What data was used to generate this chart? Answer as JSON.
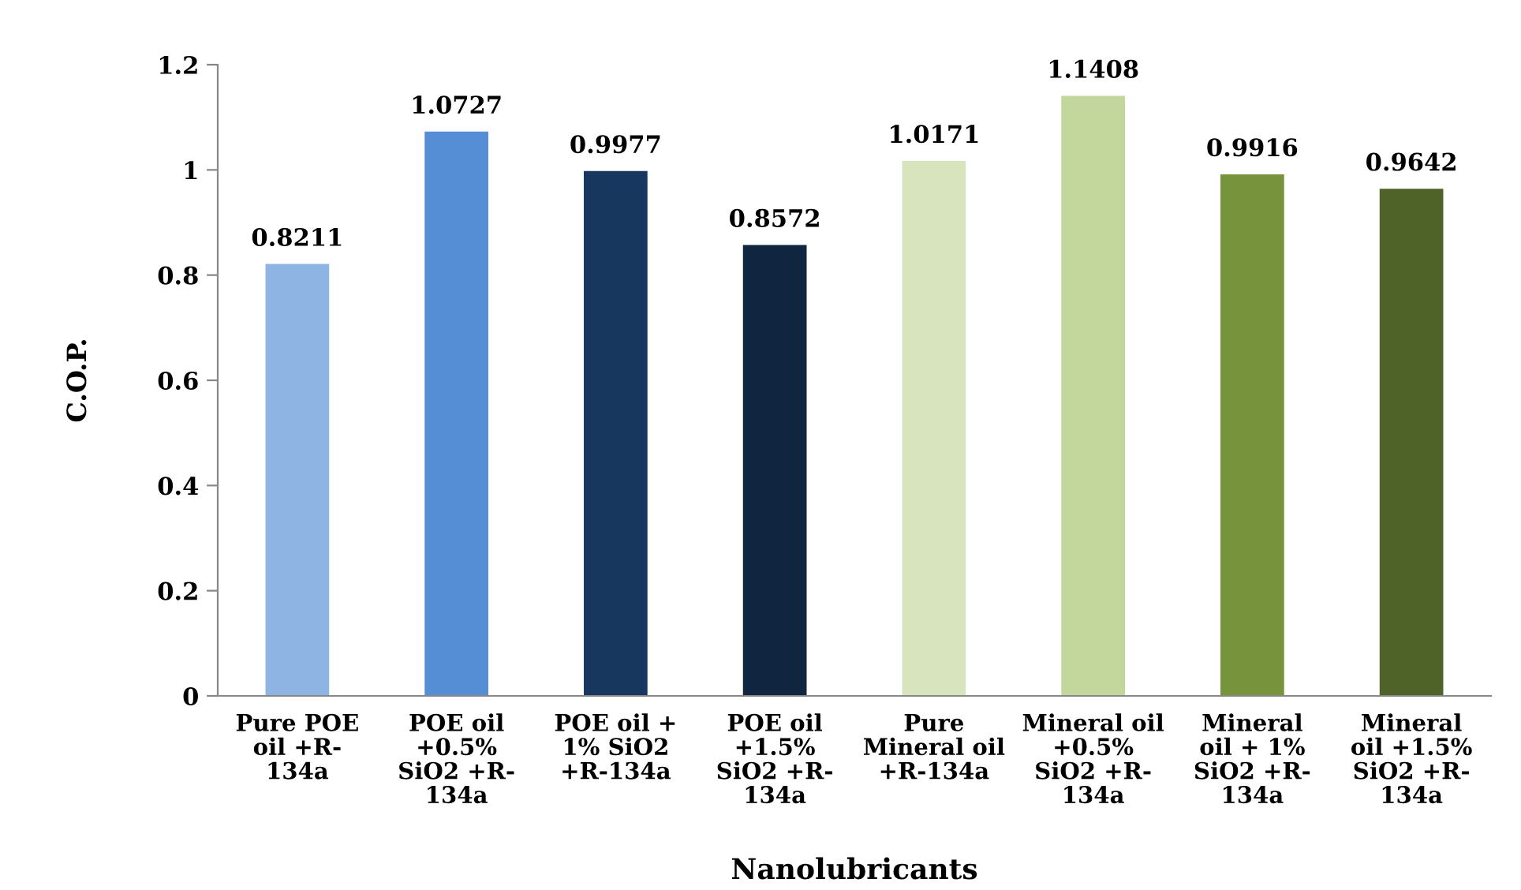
{
  "chart_data": {
    "type": "bar",
    "xlabel": "Nanolubricants",
    "ylabel": "C.O.P.",
    "categories": [
      "Pure POE\noil +R-\n134a",
      "POE oil\n+0.5%\nSiO2 +R-\n134a",
      "POE oil +\n1% SiO2\n+R-134a",
      "POE oil\n+1.5%\nSiO2 +R-\n134a",
      "Pure\nMineral oil\n+R-134a",
      "Mineral oil\n+0.5%\nSiO2 +R-\n134a",
      "Mineral\noil + 1%\nSiO2 +R-\n134a",
      "Mineral\noil +1.5%\nSiO2 +R-\n134a"
    ],
    "values": [
      0.8211,
      1.0727,
      0.9977,
      0.8572,
      1.0171,
      1.1408,
      0.9916,
      0.9642
    ],
    "colors": [
      "#8eb4e3",
      "#558ed5",
      "#17375e",
      "#10253f",
      "#d7e4bd",
      "#c3d69b",
      "#77933c",
      "#4f6228"
    ],
    "ylim": [
      0,
      1.2
    ],
    "yticks": [
      0,
      0.2,
      0.4,
      0.6,
      0.8,
      1,
      1.2
    ],
    "data_labels": true
  }
}
